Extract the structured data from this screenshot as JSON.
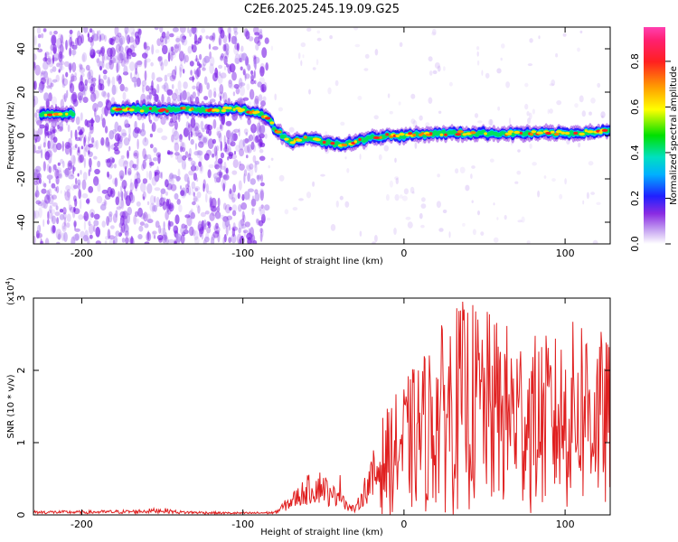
{
  "title": "C2E6.2025.245.19.09.G25",
  "chart_data": [
    {
      "type": "heatmap",
      "name": "spectrogram",
      "xlabel": "Height of straight line (km)",
      "ylabel": "Frequency (Hz)",
      "xlim": [
        -230,
        128
      ],
      "ylim": [
        -50,
        50
      ],
      "xticks": [
        -200,
        -100,
        0,
        100
      ],
      "yticks": [
        -40,
        -20,
        0,
        20,
        40
      ],
      "colorbar": {
        "label": "Normalized spectral amplitude",
        "range": [
          0,
          0.95
        ],
        "ticks": [
          "0.0",
          "0.2",
          "0.4",
          "0.6",
          "0.8"
        ]
      },
      "ridge": {
        "x": [
          -225,
          -210,
          -200,
          -185,
          -180,
          -150,
          -120,
          -100,
          -90,
          -85,
          -80,
          -75,
          -70,
          -60,
          -50,
          -40,
          -30,
          -20,
          -10,
          0,
          20,
          40,
          60,
          80,
          100,
          128
        ],
        "freq": [
          10,
          10,
          10,
          10,
          12,
          12,
          12,
          12,
          10,
          9,
          3,
          0,
          -3,
          -1,
          -3,
          -4,
          -3,
          -1,
          0,
          0,
          1,
          1,
          1,
          1,
          1,
          2
        ]
      },
      "noise_region": {
        "x_from": -230,
        "x_to": -85
      }
    },
    {
      "type": "line",
      "name": "snr",
      "xlabel": "Height of straight line (km)",
      "ylabel": "SNR (10 * v/v)",
      "multiplier_label": "(x10",
      "multiplier_exponent": "4",
      "multiplier_close": ")",
      "xlim": [
        -230,
        128
      ],
      "ylim": [
        0,
        3
      ],
      "xticks": [
        -200,
        -100,
        0,
        100
      ],
      "yticks": [
        0,
        1,
        2,
        3
      ],
      "color": "#e02020",
      "envelope": {
        "x": [
          -230,
          -200,
          -170,
          -150,
          -140,
          -110,
          -95,
          -80,
          -70,
          -60,
          -50,
          -45,
          -40,
          -35,
          -30,
          -25,
          -20,
          -15,
          -10,
          0,
          10,
          20,
          30,
          40,
          60,
          80,
          100,
          110,
          128
        ],
        "y": [
          0.06,
          0.06,
          0.07,
          0.1,
          0.06,
          0.04,
          0.04,
          0.05,
          0.3,
          0.55,
          0.65,
          0.35,
          0.6,
          0.18,
          0.12,
          0.5,
          0.8,
          1.3,
          1.5,
          1.85,
          2.2,
          2.5,
          2.9,
          3.0,
          2.7,
          2.5,
          2.5,
          2.9,
          2.4
        ]
      }
    }
  ]
}
